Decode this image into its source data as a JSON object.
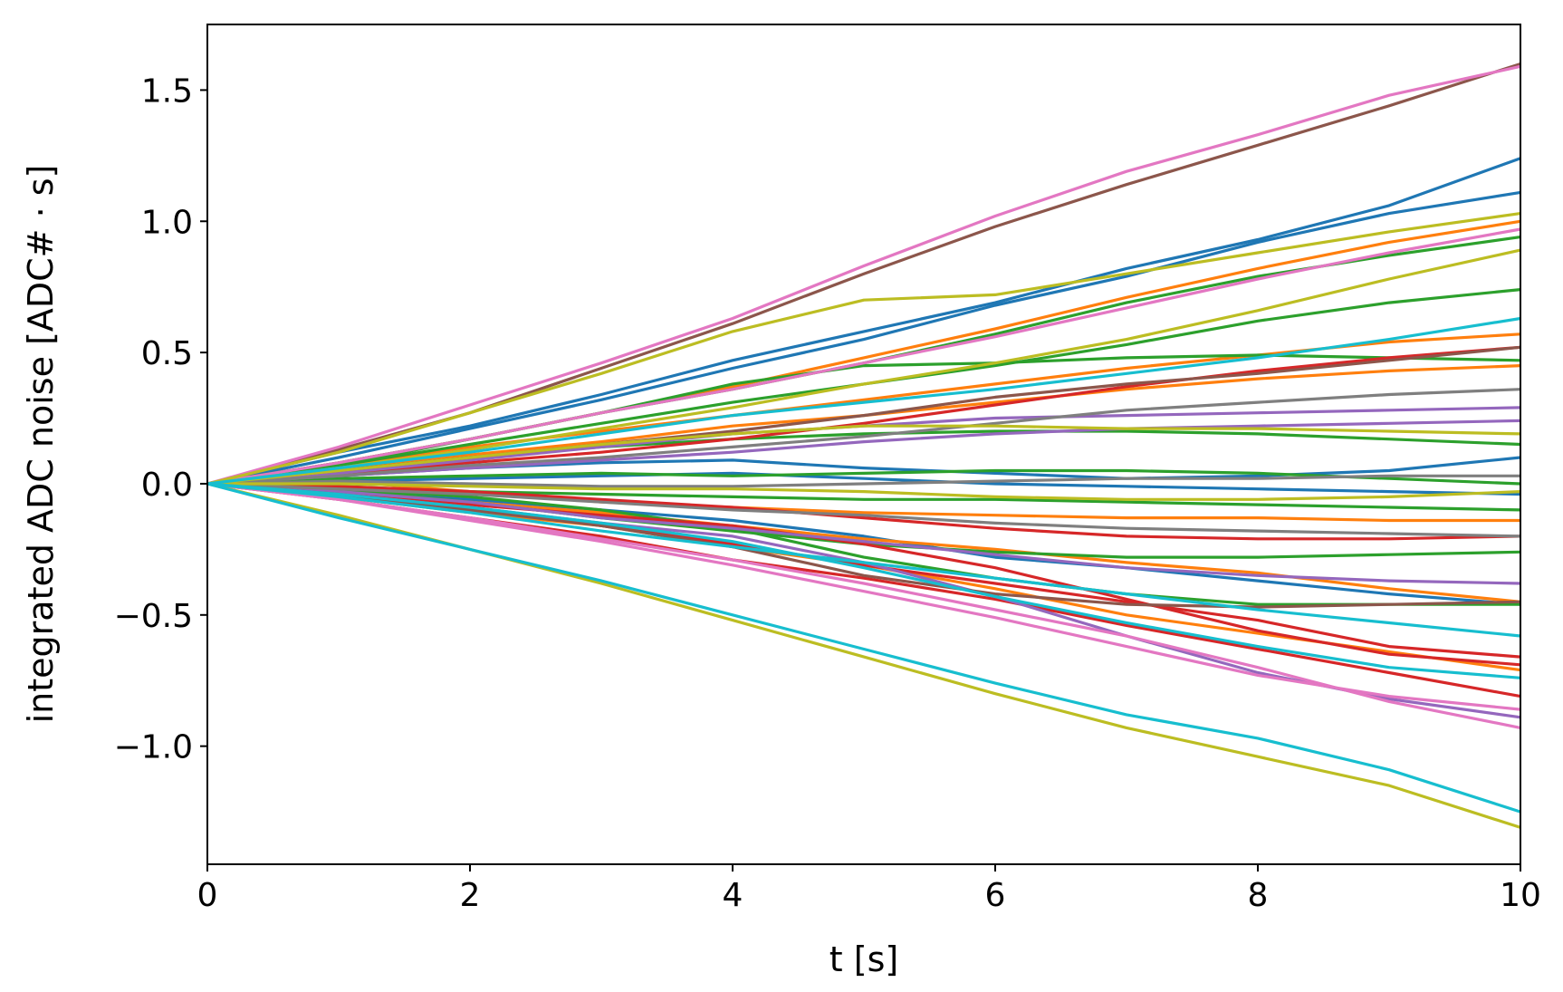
{
  "chart_data": {
    "type": "line",
    "title": "",
    "xlabel": "t [s]",
    "ylabel": "integrated ADC noise [ADC# · s]",
    "xlim": [
      0,
      10
    ],
    "ylim": [
      -1.45,
      1.75
    ],
    "xticks": [
      0,
      2,
      4,
      6,
      8,
      10
    ],
    "xtick_labels": [
      "0",
      "2",
      "4",
      "6",
      "8",
      "10"
    ],
    "yticks": [
      -1.0,
      -0.5,
      0.0,
      0.5,
      1.0,
      1.5
    ],
    "ytick_labels": [
      "−1.0",
      "−0.5",
      "0.0",
      "0.5",
      "1.0",
      "1.5"
    ],
    "grid": false,
    "legend": "none",
    "x": [
      0,
      1,
      2,
      3,
      4,
      5,
      6,
      7,
      8,
      9,
      10
    ],
    "series": [
      {
        "color": "#1f77b4",
        "values": [
          0,
          0.12,
          0.22,
          0.34,
          0.47,
          0.58,
          0.69,
          0.82,
          0.93,
          1.06,
          1.24
        ]
      },
      {
        "color": "#1f77b4",
        "values": [
          0,
          0.1,
          0.21,
          0.32,
          0.44,
          0.55,
          0.68,
          0.79,
          0.92,
          1.03,
          1.11
        ]
      },
      {
        "color": "#1f77b4",
        "values": [
          0,
          0.03,
          0.06,
          0.08,
          0.09,
          0.06,
          0.04,
          0.02,
          0.03,
          0.05,
          0.1
        ]
      },
      {
        "color": "#1f77b4",
        "values": [
          0,
          -0.03,
          -0.06,
          -0.1,
          -0.14,
          -0.2,
          -0.28,
          -0.32,
          -0.37,
          -0.42,
          -0.46
        ]
      },
      {
        "color": "#1f77b4",
        "values": [
          0,
          0.01,
          0.02,
          0.03,
          0.04,
          0.02,
          0.0,
          -0.01,
          -0.02,
          -0.03,
          -0.04
        ]
      },
      {
        "color": "#ff7f0e",
        "values": [
          0,
          0.08,
          0.17,
          0.27,
          0.37,
          0.48,
          0.59,
          0.71,
          0.82,
          0.92,
          1.0
        ]
      },
      {
        "color": "#ff7f0e",
        "values": [
          0,
          0.07,
          0.14,
          0.2,
          0.26,
          0.32,
          0.38,
          0.44,
          0.49,
          0.54,
          0.57
        ]
      },
      {
        "color": "#ff7f0e",
        "values": [
          0,
          0.06,
          0.11,
          0.16,
          0.22,
          0.26,
          0.31,
          0.36,
          0.4,
          0.43,
          0.45
        ]
      },
      {
        "color": "#ff7f0e",
        "values": [
          0,
          -0.03,
          -0.07,
          -0.11,
          -0.16,
          -0.21,
          -0.25,
          -0.3,
          -0.34,
          -0.4,
          -0.45
        ]
      },
      {
        "color": "#ff7f0e",
        "values": [
          0,
          -0.05,
          -0.11,
          -0.16,
          -0.24,
          -0.31,
          -0.4,
          -0.5,
          -0.57,
          -0.64,
          -0.71
        ]
      },
      {
        "color": "#ff7f0e",
        "values": [
          0,
          0.01,
          -0.03,
          -0.07,
          -0.09,
          -0.11,
          -0.12,
          -0.13,
          -0.13,
          -0.14,
          -0.14
        ]
      },
      {
        "color": "#2ca02c",
        "values": [
          0,
          0.08,
          0.17,
          0.27,
          0.36,
          0.46,
          0.57,
          0.69,
          0.79,
          0.87,
          0.94
        ]
      },
      {
        "color": "#2ca02c",
        "values": [
          0,
          0.07,
          0.15,
          0.23,
          0.31,
          0.38,
          0.45,
          0.53,
          0.62,
          0.69,
          0.74
        ]
      },
      {
        "color": "#2ca02c",
        "values": [
          0,
          0.07,
          0.17,
          0.27,
          0.38,
          0.45,
          0.46,
          0.48,
          0.49,
          0.48,
          0.47
        ]
      },
      {
        "color": "#2ca02c",
        "values": [
          0,
          0.05,
          0.1,
          0.14,
          0.17,
          0.19,
          0.2,
          0.2,
          0.19,
          0.17,
          0.15
        ]
      },
      {
        "color": "#2ca02c",
        "values": [
          0,
          0.02,
          0.03,
          0.04,
          0.03,
          0.04,
          0.05,
          0.05,
          0.04,
          0.02,
          0.0
        ]
      },
      {
        "color": "#2ca02c",
        "values": [
          0,
          -0.02,
          -0.07,
          -0.13,
          -0.18,
          -0.23,
          -0.26,
          -0.28,
          -0.28,
          -0.27,
          -0.26
        ]
      },
      {
        "color": "#2ca02c",
        "values": [
          0,
          -0.01,
          -0.03,
          -0.04,
          -0.05,
          -0.06,
          -0.06,
          -0.07,
          -0.08,
          -0.09,
          -0.1
        ]
      },
      {
        "color": "#2ca02c",
        "values": [
          0,
          -0.02,
          -0.05,
          -0.1,
          -0.17,
          -0.28,
          -0.36,
          -0.42,
          -0.46,
          -0.46,
          -0.46
        ]
      },
      {
        "color": "#d62728",
        "values": [
          0,
          0.04,
          0.08,
          0.12,
          0.17,
          0.23,
          0.3,
          0.37,
          0.43,
          0.48,
          0.52
        ]
      },
      {
        "color": "#d62728",
        "values": [
          0,
          -0.04,
          -0.09,
          -0.16,
          -0.23,
          -0.31,
          -0.38,
          -0.45,
          -0.52,
          -0.62,
          -0.66
        ]
      },
      {
        "color": "#d62728",
        "values": [
          0,
          -0.06,
          -0.13,
          -0.2,
          -0.29,
          -0.36,
          -0.44,
          -0.54,
          -0.63,
          -0.72,
          -0.81
        ]
      },
      {
        "color": "#d62728",
        "values": [
          0,
          -0.01,
          -0.03,
          -0.06,
          -0.09,
          -0.13,
          -0.17,
          -0.2,
          -0.21,
          -0.21,
          -0.2
        ]
      },
      {
        "color": "#d62728",
        "values": [
          0,
          -0.04,
          -0.08,
          -0.12,
          -0.16,
          -0.23,
          -0.32,
          -0.44,
          -0.56,
          -0.65,
          -0.69
        ]
      },
      {
        "color": "#9467bd",
        "values": [
          0,
          0.04,
          0.09,
          0.14,
          0.19,
          0.22,
          0.25,
          0.26,
          0.27,
          0.28,
          0.29
        ]
      },
      {
        "color": "#9467bd",
        "values": [
          0,
          -0.04,
          -0.09,
          -0.15,
          -0.2,
          -0.3,
          -0.43,
          -0.58,
          -0.72,
          -0.82,
          -0.89
        ]
      },
      {
        "color": "#9467bd",
        "values": [
          0,
          0.03,
          0.06,
          0.09,
          0.12,
          0.16,
          0.19,
          0.21,
          0.22,
          0.23,
          0.24
        ]
      },
      {
        "color": "#9467bd",
        "values": [
          0,
          -0.03,
          -0.07,
          -0.13,
          -0.17,
          -0.22,
          -0.27,
          -0.32,
          -0.35,
          -0.37,
          -0.38
        ]
      },
      {
        "color": "#8c564b",
        "values": [
          0,
          0.13,
          0.27,
          0.44,
          0.61,
          0.8,
          0.98,
          1.14,
          1.29,
          1.44,
          1.6
        ]
      },
      {
        "color": "#8c564b",
        "values": [
          0,
          0.05,
          0.1,
          0.15,
          0.2,
          0.26,
          0.33,
          0.38,
          0.42,
          0.47,
          0.52
        ]
      },
      {
        "color": "#8c564b",
        "values": [
          0,
          -0.04,
          -0.1,
          -0.16,
          -0.24,
          -0.35,
          -0.42,
          -0.46,
          -0.47,
          -0.46,
          -0.45
        ]
      },
      {
        "color": "#e377c2",
        "values": [
          0,
          0.14,
          0.3,
          0.46,
          0.63,
          0.83,
          1.02,
          1.19,
          1.33,
          1.48,
          1.59
        ]
      },
      {
        "color": "#e377c2",
        "values": [
          0,
          -0.06,
          -0.13,
          -0.21,
          -0.29,
          -0.38,
          -0.48,
          -0.58,
          -0.7,
          -0.83,
          -0.93
        ]
      },
      {
        "color": "#e377c2",
        "values": [
          0,
          -0.06,
          -0.14,
          -0.22,
          -0.31,
          -0.41,
          -0.51,
          -0.62,
          -0.73,
          -0.81,
          -0.86
        ]
      },
      {
        "color": "#e377c2",
        "values": [
          0,
          0.08,
          0.17,
          0.27,
          0.36,
          0.46,
          0.56,
          0.67,
          0.78,
          0.88,
          0.97
        ]
      },
      {
        "color": "#7f7f7f",
        "values": [
          0,
          0.03,
          0.07,
          0.1,
          0.14,
          0.18,
          0.23,
          0.28,
          0.31,
          0.34,
          0.36
        ]
      },
      {
        "color": "#7f7f7f",
        "values": [
          0,
          -0.02,
          -0.04,
          -0.07,
          -0.1,
          -0.12,
          -0.15,
          -0.17,
          -0.18,
          -0.19,
          -0.2
        ]
      },
      {
        "color": "#7f7f7f",
        "values": [
          0,
          0.01,
          0.0,
          -0.01,
          -0.01,
          0.0,
          0.01,
          0.02,
          0.02,
          0.03,
          0.03
        ]
      },
      {
        "color": "#bcbd22",
        "values": [
          0,
          0.12,
          0.27,
          0.42,
          0.58,
          0.7,
          0.72,
          0.8,
          0.88,
          0.96,
          1.03
        ]
      },
      {
        "color": "#bcbd22",
        "values": [
          0,
          0.06,
          0.13,
          0.21,
          0.29,
          0.38,
          0.46,
          0.55,
          0.66,
          0.78,
          0.89
        ]
      },
      {
        "color": "#bcbd22",
        "values": [
          0,
          0.05,
          0.1,
          0.15,
          0.19,
          0.22,
          0.22,
          0.21,
          0.21,
          0.2,
          0.19
        ]
      },
      {
        "color": "#bcbd22",
        "values": [
          0,
          -0.12,
          -0.25,
          -0.38,
          -0.52,
          -0.66,
          -0.8,
          -0.93,
          -1.04,
          -1.15,
          -1.31
        ]
      },
      {
        "color": "#bcbd22",
        "values": [
          0,
          0.0,
          -0.01,
          -0.02,
          -0.02,
          -0.03,
          -0.05,
          -0.06,
          -0.06,
          -0.05,
          -0.03
        ]
      },
      {
        "color": "#17becf",
        "values": [
          0,
          -0.13,
          -0.25,
          -0.37,
          -0.5,
          -0.63,
          -0.76,
          -0.88,
          -0.97,
          -1.09,
          -1.25
        ]
      },
      {
        "color": "#17becf",
        "values": [
          0,
          -0.04,
          -0.09,
          -0.15,
          -0.22,
          -0.32,
          -0.43,
          -0.53,
          -0.62,
          -0.7,
          -0.74
        ]
      },
      {
        "color": "#17becf",
        "values": [
          0,
          0.06,
          0.12,
          0.19,
          0.26,
          0.31,
          0.36,
          0.42,
          0.48,
          0.55,
          0.63
        ]
      },
      {
        "color": "#17becf",
        "values": [
          0,
          -0.05,
          -0.11,
          -0.18,
          -0.24,
          -0.3,
          -0.36,
          -0.42,
          -0.48,
          -0.53,
          -0.58
        ]
      }
    ]
  }
}
